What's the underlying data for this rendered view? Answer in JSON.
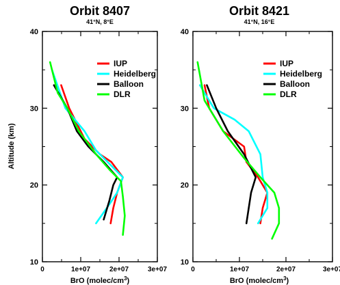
{
  "y_axis_label": "Altitude (km)",
  "legend_order": [
    "IUP",
    "Heidelberg",
    "Balloon",
    "DLR"
  ],
  "chart_data": [
    {
      "type": "line",
      "title": "Orbit 8407",
      "subtitle": "41°N, 8°E",
      "xlabel_prefix": "BrO (molec/cm",
      "xlabel_sup": "3",
      "xlabel_suffix": ")",
      "ylabel": "Altitude (km)",
      "xlim": [
        0,
        30000000
      ],
      "ylim": [
        10,
        40
      ],
      "xticks": [
        0,
        10000000,
        20000000,
        30000000
      ],
      "xtick_labels": [
        "0",
        "1e+07",
        "2e+07",
        "3e+07"
      ],
      "yticks": [
        10,
        20,
        30,
        40
      ],
      "ytick_labels": [
        "10",
        "20",
        "30",
        "40"
      ],
      "legend_position": "top-right",
      "series": [
        {
          "name": "IUP",
          "color": "#ff0000",
          "points": [
            [
              4900000,
              33
            ],
            [
              7000000,
              30
            ],
            [
              11000000,
              26
            ],
            [
              15000000,
              24
            ],
            [
              18000000,
              23
            ],
            [
              21000000,
              21
            ],
            [
              19500000,
              19
            ],
            [
              18500000,
              17
            ],
            [
              17800000,
              15
            ]
          ]
        },
        {
          "name": "Heidelberg",
          "color": "#00ffff",
          "points": [
            [
              2500000,
              35
            ],
            [
              6000000,
              30
            ],
            [
              11000000,
              27
            ],
            [
              14000000,
              24.5
            ],
            [
              18000000,
              22.5
            ],
            [
              21000000,
              21
            ],
            [
              19500000,
              19
            ],
            [
              17500000,
              17.5
            ],
            [
              14000000,
              15
            ]
          ]
        },
        {
          "name": "Balloon",
          "color": "#000000",
          "points": [
            [
              3000000,
              33
            ],
            [
              6500000,
              30
            ],
            [
              9000000,
              27
            ],
            [
              12000000,
              25
            ],
            [
              16000000,
              23
            ],
            [
              19500000,
              21
            ],
            [
              18500000,
              20
            ],
            [
              17500000,
              18
            ],
            [
              16000000,
              15.5
            ]
          ]
        },
        {
          "name": "DLR",
          "color": "#00ff00",
          "points": [
            [
              2000000,
              36
            ],
            [
              4000000,
              32
            ],
            [
              6500000,
              30
            ],
            [
              9500000,
              27
            ],
            [
              14000000,
              24
            ],
            [
              17500000,
              22
            ],
            [
              20500000,
              20.5
            ],
            [
              21000000,
              18.5
            ],
            [
              21500000,
              16
            ],
            [
              21000000,
              13.5
            ]
          ]
        }
      ]
    },
    {
      "type": "line",
      "title": "Orbit 8421",
      "subtitle": "41°N, 16°E",
      "xlabel_prefix": "BrO (molec/cm",
      "xlabel_sup": "3",
      "xlabel_suffix": ")",
      "ylabel": "",
      "xlim": [
        0,
        30000000
      ],
      "ylim": [
        10,
        40
      ],
      "xticks": [
        0,
        10000000,
        20000000,
        30000000
      ],
      "xtick_labels": [
        "0",
        "1e+07",
        "2e+07",
        "3e+07"
      ],
      "yticks": [
        10,
        20,
        30,
        40
      ],
      "ytick_labels": [
        "10",
        "20",
        "30",
        "40"
      ],
      "legend_position": "top-right",
      "series": [
        {
          "name": "IUP",
          "color": "#ff0000",
          "points": [
            [
              2500000,
              33
            ],
            [
              3500000,
              30
            ],
            [
              6500000,
              27
            ],
            [
              11000000,
              25
            ],
            [
              11500000,
              23
            ],
            [
              14000000,
              21
            ],
            [
              16000000,
              19
            ],
            [
              15000000,
              17
            ],
            [
              14500000,
              15
            ]
          ]
        },
        {
          "name": "Heidelberg",
          "color": "#00ffff",
          "points": [
            [
              1500000,
              33
            ],
            [
              4500000,
              30
            ],
            [
              9000000,
              28.5
            ],
            [
              12000000,
              27
            ],
            [
              14500000,
              24
            ],
            [
              15000000,
              21
            ],
            [
              16000000,
              19
            ],
            [
              16000000,
              17
            ],
            [
              14000000,
              15
            ]
          ]
        },
        {
          "name": "Balloon",
          "color": "#000000",
          "points": [
            [
              3000000,
              33
            ],
            [
              5000000,
              30
            ],
            [
              7500000,
              27
            ],
            [
              11000000,
              24
            ],
            [
              13500000,
              21
            ],
            [
              12500000,
              19
            ],
            [
              11500000,
              15
            ]
          ]
        },
        {
          "name": "DLR",
          "color": "#00ff00",
          "points": [
            [
              1000000,
              36
            ],
            [
              2500000,
              31
            ],
            [
              6500000,
              27
            ],
            [
              11000000,
              23.5
            ],
            [
              14500000,
              21
            ],
            [
              17500000,
              19
            ],
            [
              18500000,
              17
            ],
            [
              18500000,
              15
            ],
            [
              17000000,
              13
            ]
          ]
        }
      ]
    }
  ]
}
